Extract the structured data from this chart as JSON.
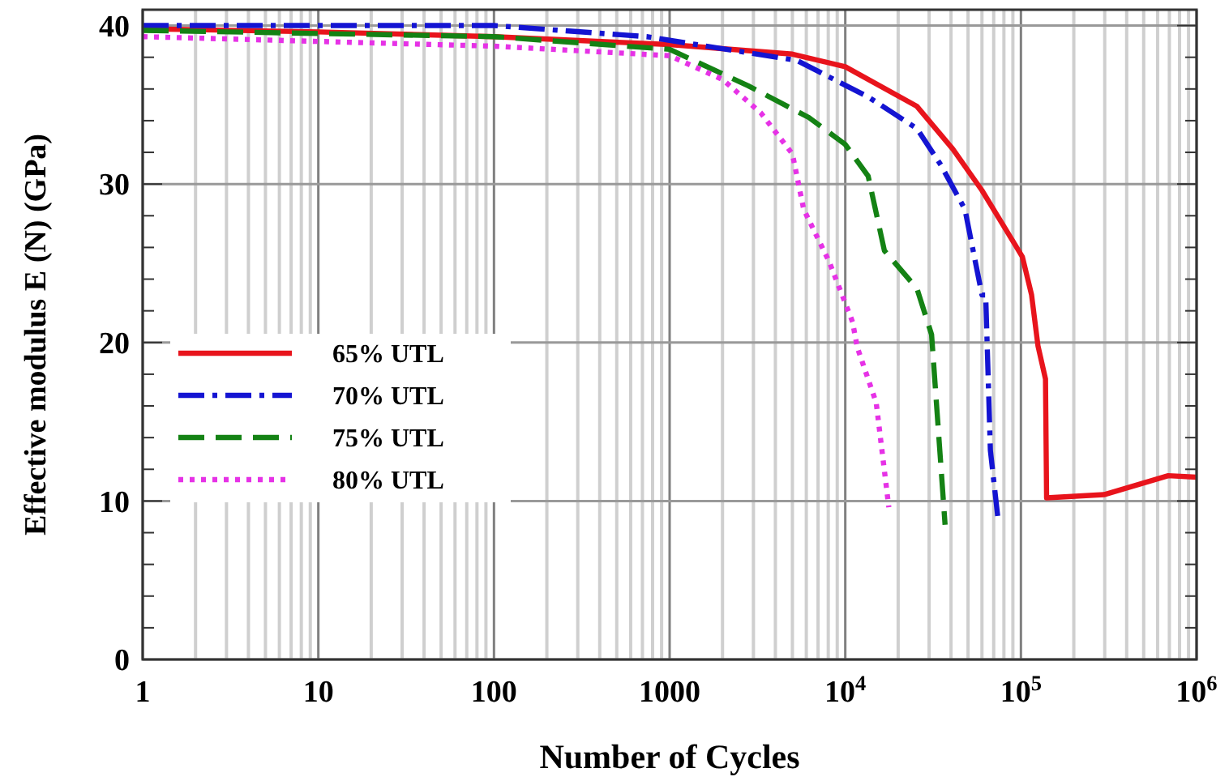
{
  "chart_data": {
    "type": "line",
    "xlabel": "Number of Cycles",
    "ylabel": "Effective modulus E (N) (GPa)",
    "log": "x",
    "xlim": [
      1,
      1000000
    ],
    "ylim": [
      0,
      41
    ],
    "xticks": [
      1,
      10,
      100,
      1000,
      {
        "value": 10000,
        "label": "10$^{4}$"
      },
      {
        "value": 100000,
        "label": "10$^{5}$"
      },
      {
        "value": 1000000,
        "label": "10$^{6}$"
      }
    ],
    "yticks": [
      0,
      10,
      20,
      30,
      40
    ],
    "grid": true,
    "legend": "left",
    "series": [
      {
        "name": "65% UTL",
        "color": "#e8141c",
        "line_style": "solid",
        "x": [
          1,
          10,
          100,
          1000,
          5000,
          10000,
          25600,
          41000,
          60000,
          90000,
          102000,
          115000,
          125000,
          138000,
          140000,
          297000,
          690000,
          1000000
        ],
        "values": [
          39.8,
          39.6,
          39.3,
          38.8,
          38.2,
          37.4,
          34.9,
          32.2,
          29.6,
          26.4,
          25.4,
          23,
          19.8,
          17.7,
          10.2,
          10.4,
          11.6,
          11.5
        ]
      },
      {
        "name": "70% UTL",
        "color": "#1414d2",
        "line_style": "dashdot",
        "x": [
          1,
          10,
          100,
          740,
          5300,
          13500,
          25600,
          35000,
          48000,
          60000,
          63000,
          67000,
          74000
        ],
        "values": [
          40,
          40,
          40,
          39.3,
          37.8,
          35.5,
          33.5,
          31.2,
          28.4,
          23,
          23,
          13.2,
          8.9
        ]
      },
      {
        "name": "75% UTL",
        "color": "#148214",
        "line_style": "dashed",
        "x": [
          1,
          100,
          1000,
          2800,
          6200,
          10000,
          13500,
          16700,
          25600,
          31000,
          37000
        ],
        "values": [
          39.7,
          39.3,
          38.5,
          36.2,
          34.2,
          32.5,
          30.5,
          25.8,
          23.4,
          20.5,
          8.5
        ]
      },
      {
        "name": "80% UTL",
        "color": "#e632e6",
        "line_style": "dotted",
        "x": [
          1,
          10,
          100,
          1000,
          2000,
          3300,
          5000,
          5800,
          8100,
          11000,
          11700,
          15000,
          17700
        ],
        "values": [
          39.3,
          39,
          38.7,
          38.1,
          36.6,
          34.5,
          31.9,
          28.4,
          25.1,
          21.3,
          19.7,
          16.2,
          9.6
        ]
      }
    ]
  }
}
